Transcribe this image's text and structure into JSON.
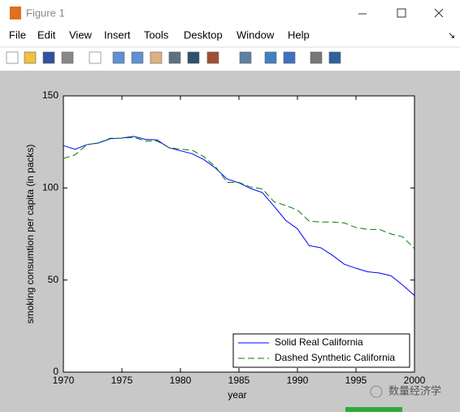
{
  "window": {
    "title": "Figure 1"
  },
  "menu": {
    "items": [
      "File",
      "Edit",
      "View",
      "Insert",
      "Tools",
      "Desktop",
      "Window",
      "Help"
    ]
  },
  "watermark": "数量经济学",
  "chart_data": {
    "type": "line",
    "x": [
      1970,
      1971,
      1972,
      1973,
      1974,
      1975,
      1976,
      1977,
      1978,
      1979,
      1980,
      1981,
      1982,
      1983,
      1984,
      1985,
      1986,
      1987,
      1988,
      1989,
      1990,
      1991,
      1992,
      1993,
      1994,
      1995,
      1996,
      1997,
      1998,
      1999,
      2000
    ],
    "series": [
      {
        "name": "Solid Real California",
        "color": "#0000ff",
        "dash": false,
        "values": [
          123,
          121,
          123.5,
          124.4,
          126.7,
          127.1,
          128,
          126.4,
          126.1,
          121.9,
          120.2,
          118.6,
          115.4,
          110.8,
          104.8,
          102.8,
          99.7,
          97.5,
          90.1,
          82.4,
          77.8,
          68.7,
          67.5,
          63.4,
          58.6,
          56.4,
          54.5,
          53.8,
          52.3,
          47.2,
          41.6
        ]
      },
      {
        "name": "Dashed Synthetic California",
        "color": "#008000",
        "dash": true,
        "values": [
          116,
          118,
          123.5,
          124.5,
          127,
          127,
          127.5,
          125.5,
          125.5,
          122,
          121,
          120.5,
          117,
          111.5,
          103,
          103,
          100.5,
          99.5,
          92.5,
          90.5,
          88,
          82,
          81.5,
          81.5,
          81,
          78.5,
          77.5,
          77.5,
          75,
          73.5,
          67
        ]
      }
    ],
    "xlabel": "year",
    "ylabel": "smoking consumtion per capita (in packs)",
    "xlim": [
      1970,
      2000
    ],
    "xticks": [
      1970,
      1975,
      1980,
      1985,
      1990,
      1995,
      2000
    ],
    "ylim": [
      0,
      150
    ],
    "yticks": [
      0,
      50,
      100,
      150
    ],
    "grid": false,
    "legend": "lower right"
  }
}
